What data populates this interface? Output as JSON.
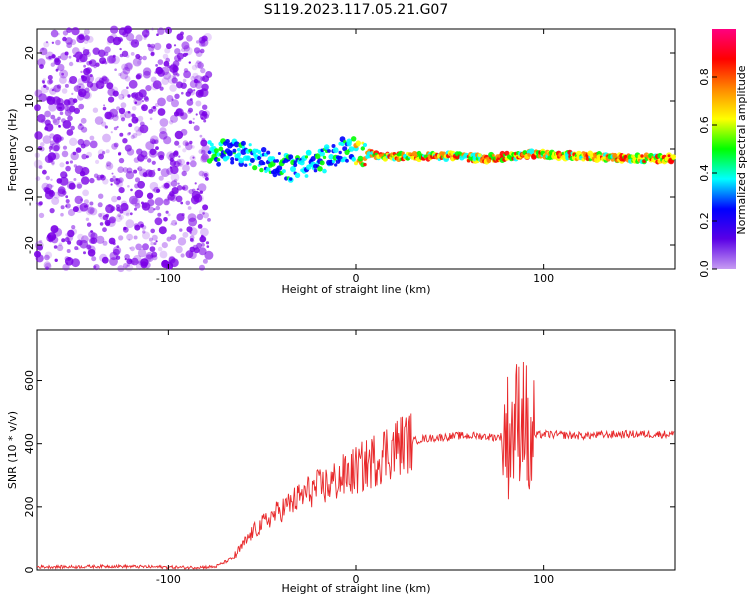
{
  "title": "S119.2023.117.05.21.G07",
  "colors": {
    "axis": "#000000",
    "snr_line": "#e8282a",
    "scatter_base": "#7a00e6",
    "colorbar_stops": [
      "#c79cf2",
      "#5a00e6",
      "#0000ff",
      "#00ffff",
      "#00ff00",
      "#ffff00",
      "#ff8800",
      "#ff0000",
      "#ff0080"
    ]
  },
  "chart_data": [
    {
      "type": "heatmap",
      "xlabel": "Height of straight line (km)",
      "ylabel": "Frequency (Hz)",
      "xlim": [
        -170,
        170
      ],
      "ylim": [
        -25,
        25
      ],
      "xticks": [
        -100,
        0,
        100
      ],
      "yticks": [
        -20,
        -10,
        0,
        10,
        20
      ],
      "colorbar": {
        "label": "Normalized spectral amplitude",
        "range": [
          0,
          1
        ],
        "ticks": [
          "0.0",
          "0.2",
          "0.4",
          "0.6",
          "0.8"
        ]
      },
      "noise_region_x": [
        -170,
        -78
      ],
      "ridge": [
        {
          "x": -78,
          "y": -1.0
        },
        {
          "x": -65,
          "y": -0.5
        },
        {
          "x": -55,
          "y": -1.5
        },
        {
          "x": -45,
          "y": -3.0
        },
        {
          "x": -35,
          "y": -4.0
        },
        {
          "x": -25,
          "y": -3.0
        },
        {
          "x": -15,
          "y": -2.0
        },
        {
          "x": -5,
          "y": 0.0
        },
        {
          "x": 5,
          "y": -1.0
        },
        {
          "x": 20,
          "y": -1.5
        },
        {
          "x": 50,
          "y": -1.5
        },
        {
          "x": 70,
          "y": -2.0
        },
        {
          "x": 82,
          "y": -1.5
        },
        {
          "x": 95,
          "y": -1.0
        },
        {
          "x": 120,
          "y": -1.5
        },
        {
          "x": 150,
          "y": -2.0
        },
        {
          "x": 170,
          "y": -2.0
        }
      ]
    },
    {
      "type": "line",
      "xlabel": "Height of straight line (km)",
      "ylabel": "SNR (10 * v/v)",
      "xlim": [
        -170,
        170
      ],
      "ylim": [
        0,
        760
      ],
      "xticks": [
        -100,
        0,
        100
      ],
      "yticks": [
        0,
        200,
        400,
        600
      ],
      "series": [
        {
          "x": [
            -170,
            -150,
            -130,
            -110,
            -90,
            -75,
            -65,
            -55,
            -45,
            -35,
            -25,
            -15,
            -5,
            5,
            15,
            25,
            35,
            45,
            55,
            65,
            75,
            82,
            86,
            90,
            92,
            95,
            100,
            120,
            140,
            160,
            170
          ],
          "y": [
            10,
            10,
            12,
            10,
            8,
            10,
            40,
            120,
            170,
            210,
            250,
            270,
            300,
            330,
            370,
            400,
            415,
            420,
            425,
            425,
            420,
            430,
            470,
            520,
            350,
            425,
            430,
            425,
            430,
            430,
            430
          ]
        }
      ]
    }
  ]
}
